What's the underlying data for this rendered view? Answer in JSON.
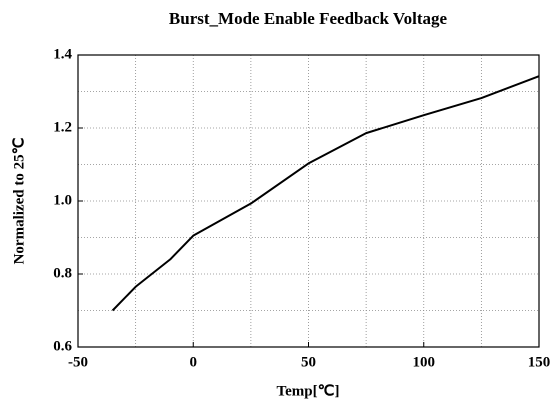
{
  "chart_data": {
    "type": "line",
    "title": "Burst_Mode Enable Feedback Voltage",
    "xlabel": "Temp[℃]",
    "ylabel": "Normalized to 25℃",
    "x": [
      -35,
      -25,
      -10,
      0,
      25,
      50,
      75,
      100,
      125,
      150
    ],
    "series": [
      {
        "color": "#000000",
        "values": [
          0.7,
          0.765,
          0.84,
          0.905,
          0.993,
          1.103,
          1.186,
          1.235,
          1.282,
          1.342
        ]
      }
    ],
    "xlim": [
      -50,
      150
    ],
    "xticks": [
      -50,
      0,
      50,
      100,
      150
    ],
    "x_minor_grid": [
      -25,
      25,
      75,
      125
    ],
    "ylim": [
      0.6,
      1.4
    ],
    "yticks": [
      0.6,
      0.8,
      {
        "value": 1,
        "label": "1.0"
      },
      1.2,
      1.4
    ],
    "y_minor_grid": [
      0.7,
      0.9,
      1.1,
      1.3
    ],
    "grid": true
  }
}
